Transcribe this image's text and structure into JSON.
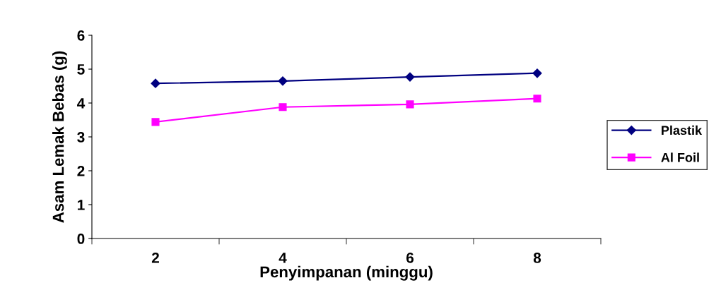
{
  "chart_data": {
    "type": "line",
    "xlabel": "Penyimpanan (minggu)",
    "ylabel": "Asam Lemak Bebas (g)",
    "categories": [
      "2",
      "4",
      "6",
      "8"
    ],
    "series": [
      {
        "name": "Plastik",
        "color": "#000080",
        "marker": "diamond",
        "values": [
          4.58,
          4.65,
          4.77,
          4.88
        ]
      },
      {
        "name": "Al Foil",
        "color": "#ff00ff",
        "marker": "square",
        "values": [
          3.44,
          3.88,
          3.96,
          4.13
        ]
      }
    ],
    "ylim": [
      0,
      6
    ],
    "yticks": [
      0,
      1,
      2,
      3,
      4,
      5,
      6
    ],
    "grid": false,
    "legend": "right"
  }
}
